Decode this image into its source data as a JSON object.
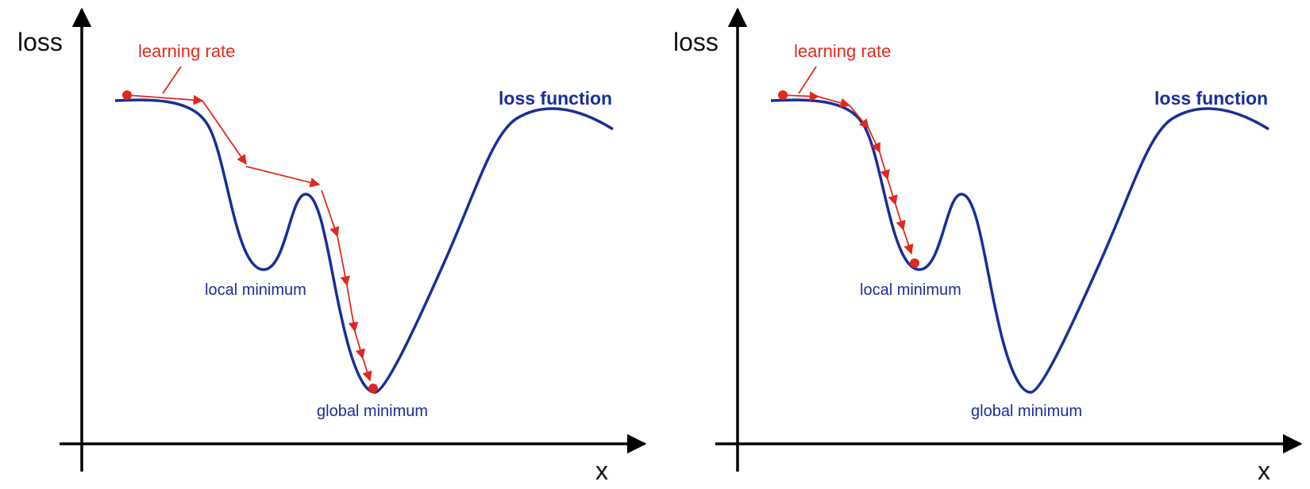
{
  "colors": {
    "curve": "#1a2e96",
    "step": "#e0281f",
    "axis": "#000000"
  },
  "panels": [
    {
      "y_axis_label": "loss",
      "x_axis_label": "x",
      "learning_rate_label": "learning rate",
      "curve_label": "loss function",
      "local_min_label": "local minimum",
      "global_min_label": "global minimum"
    },
    {
      "y_axis_label": "loss",
      "x_axis_label": "x",
      "learning_rate_label": "learning rate",
      "curve_label": "loss function",
      "local_min_label": "local minimum",
      "global_min_label": "global minimum"
    }
  ]
}
